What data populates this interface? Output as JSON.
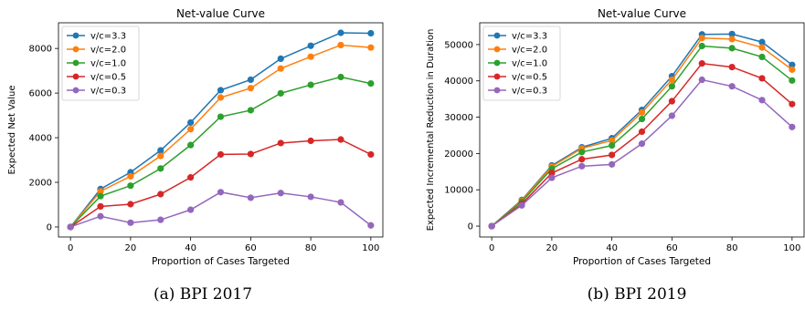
{
  "colors": {
    "c33": "#1f77b4",
    "c20": "#ff7f0e",
    "c10": "#2ca02c",
    "c05": "#d62728",
    "c03": "#9467bd"
  },
  "chart_data": [
    {
      "type": "line",
      "title": "Net-value Curve",
      "caption": "(a) BPI 2017",
      "xlabel": "Proportion of Cases Targeted",
      "ylabel": "Expected Net Value",
      "x": [
        0,
        10,
        20,
        30,
        40,
        50,
        60,
        70,
        80,
        90,
        100
      ],
      "xlim": [
        -4,
        104
      ],
      "ylim": [
        -450,
        9150
      ],
      "xticks": [
        0,
        20,
        40,
        60,
        80,
        100
      ],
      "yticks": [
        0,
        2000,
        4000,
        6000,
        8000
      ],
      "grid": false,
      "legend_position": "upper-left",
      "series": [
        {
          "name": "v/c=3.3",
          "color": "#1f77b4",
          "values": [
            0,
            1700,
            2450,
            3430,
            4680,
            6130,
            6600,
            7540,
            8120,
            8700,
            8680
          ]
        },
        {
          "name": "v/c=2.0",
          "color": "#ff7f0e",
          "values": [
            0,
            1600,
            2270,
            3180,
            4380,
            5800,
            6220,
            7100,
            7630,
            8150,
            8040
          ]
        },
        {
          "name": "v/c=1.0",
          "color": "#2ca02c",
          "values": [
            0,
            1380,
            1850,
            2620,
            3670,
            4940,
            5230,
            5990,
            6370,
            6720,
            6430
          ]
        },
        {
          "name": "v/c=0.5",
          "color": "#d62728",
          "values": [
            0,
            920,
            1020,
            1470,
            2220,
            3250,
            3270,
            3760,
            3860,
            3920,
            3250
          ]
        },
        {
          "name": "v/c=0.3",
          "color": "#9467bd",
          "values": [
            0,
            480,
            190,
            320,
            770,
            1560,
            1310,
            1520,
            1350,
            1100,
            70
          ]
        }
      ]
    },
    {
      "type": "line",
      "title": "Net-value Curve",
      "caption": "(b) BPI 2019",
      "xlabel": "Proportion of Cases Targeted",
      "ylabel": "Expected Incremental Reduction in Duration",
      "x": [
        0,
        10,
        20,
        30,
        40,
        50,
        60,
        70,
        80,
        90,
        100
      ],
      "xlim": [
        -4,
        104
      ],
      "ylim": [
        -3000,
        56000
      ],
      "xticks": [
        0,
        20,
        40,
        60,
        80,
        100
      ],
      "yticks": [
        0,
        10000,
        20000,
        30000,
        40000,
        50000
      ],
      "grid": false,
      "legend_position": "upper-left",
      "series": [
        {
          "name": "v/c=3.3",
          "color": "#1f77b4",
          "values": [
            0,
            7200,
            16700,
            21700,
            24200,
            32000,
            41300,
            52800,
            52900,
            50700,
            44400
          ]
        },
        {
          "name": "v/c=2.0",
          "color": "#ff7f0e",
          "values": [
            0,
            7000,
            16400,
            21400,
            23600,
            31300,
            40300,
            51800,
            51500,
            49200,
            43100
          ]
        },
        {
          "name": "v/c=1.0",
          "color": "#2ca02c",
          "values": [
            0,
            6700,
            15800,
            20400,
            22200,
            29500,
            38500,
            49600,
            49000,
            46600,
            40100
          ]
        },
        {
          "name": "v/c=0.5",
          "color": "#d62728",
          "values": [
            0,
            6100,
            14600,
            18400,
            19600,
            26000,
            34400,
            44800,
            43800,
            40700,
            33600
          ]
        },
        {
          "name": "v/c=0.3",
          "color": "#9467bd",
          "values": [
            0,
            5700,
            13300,
            16500,
            17000,
            22700,
            30400,
            40300,
            38500,
            34700,
            27300
          ]
        }
      ]
    }
  ]
}
